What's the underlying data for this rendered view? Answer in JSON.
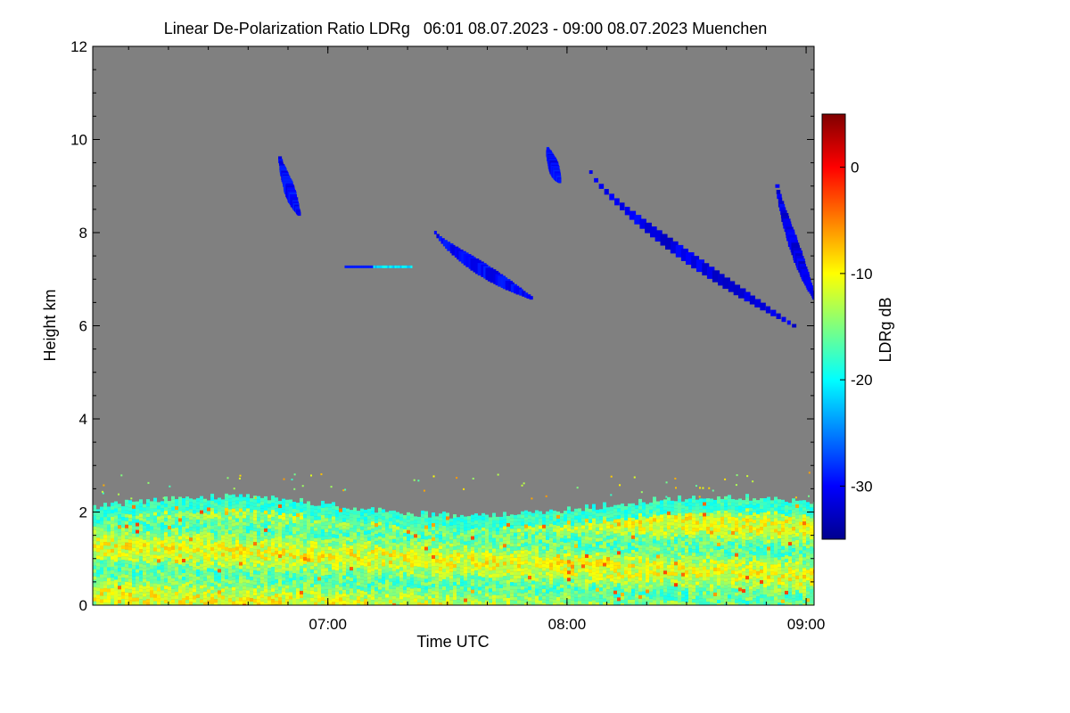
{
  "chart_data": {
    "type": "heatmap",
    "title": "Linear De-Polarization Ratio LDRg   06:01 08.07.2023 - 09:00 08.07.2023 Muenchen",
    "xlabel": "Time UTC",
    "ylabel": "Height km",
    "x_range_hours_utc": [
      6.0167,
      9.0333
    ],
    "x_ticks": [
      {
        "value": 7,
        "label": "07:00"
      },
      {
        "value": 8,
        "label": "08:00"
      },
      {
        "value": 9,
        "label": "09:00"
      }
    ],
    "ylim": [
      0,
      12
    ],
    "y_ticks": [
      {
        "value": 0,
        "label": "0"
      },
      {
        "value": 2,
        "label": "2"
      },
      {
        "value": 4,
        "label": "4"
      },
      {
        "value": 6,
        "label": "6"
      },
      {
        "value": 8,
        "label": "8"
      },
      {
        "value": 10,
        "label": "10"
      },
      {
        "value": 12,
        "label": "12"
      }
    ],
    "background_color": "#808080",
    "colorbar": {
      "label": "LDRg dB",
      "range": [
        -35,
        5
      ],
      "ticks": [
        {
          "value": 0,
          "label": "0"
        },
        {
          "value": -10,
          "label": "-10"
        },
        {
          "value": -20,
          "label": "-20"
        },
        {
          "value": -30,
          "label": "-30"
        }
      ],
      "colormap": "jet"
    },
    "features": [
      {
        "kind": "boundary_layer_aerosol",
        "time_range": [
          6.0167,
          9.0333
        ],
        "height_range_km": [
          0,
          2.3
        ],
        "ldr_db_range": [
          -22,
          -8
        ]
      },
      {
        "kind": "cirrus_fallstreak",
        "time_range": [
          6.8,
          6.88
        ],
        "height_range_km": [
          8.4,
          9.6
        ],
        "ldr_db": -30
      },
      {
        "kind": "cirrus_fallstreak",
        "time_range": [
          7.45,
          7.85
        ],
        "height_range_km": [
          6.6,
          8.0
        ],
        "ldr_db": -30
      },
      {
        "kind": "cirrus_fallstreak",
        "time_range": [
          7.92,
          7.97
        ],
        "height_range_km": [
          9.1,
          9.8
        ],
        "ldr_db": -30
      },
      {
        "kind": "cirrus_fallstreak",
        "time_range": [
          8.1,
          8.95
        ],
        "height_range_km": [
          6.0,
          9.3
        ],
        "ldr_db": -31
      },
      {
        "kind": "cirrus_fallstreak",
        "time_range": [
          8.88,
          9.0333
        ],
        "height_range_km": [
          6.6,
          9.0
        ],
        "ldr_db": -31
      },
      {
        "kind": "thin_layer",
        "time_range": [
          7.07,
          7.35
        ],
        "height_range_km": [
          7.2,
          7.35
        ],
        "ldr_db": -29
      }
    ]
  }
}
